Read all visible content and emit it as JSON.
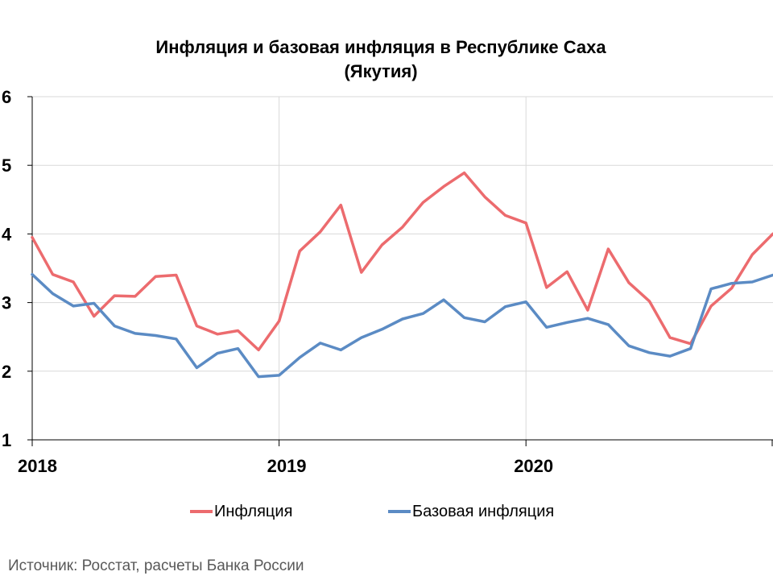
{
  "chart_data": {
    "type": "line",
    "title_line1": "Инфляция и базовая инфляция в Республике Саха",
    "title_line2": "(Якутия)",
    "ylim": [
      1,
      6
    ],
    "yticks": [
      "1",
      "2",
      "3",
      "4",
      "5",
      "6"
    ],
    "xlabels": [
      "2018",
      "2019",
      "2020"
    ],
    "grid": true,
    "legend_position": "bottom",
    "source": "Источник: Росстат, расчеты Банка России",
    "x": [
      "2018-01",
      "2018-02",
      "2018-03",
      "2018-04",
      "2018-05",
      "2018-06",
      "2018-07",
      "2018-08",
      "2018-09",
      "2018-10",
      "2018-11",
      "2018-12",
      "2019-01",
      "2019-02",
      "2019-03",
      "2019-04",
      "2019-05",
      "2019-06",
      "2019-07",
      "2019-08",
      "2019-09",
      "2019-10",
      "2019-11",
      "2019-12",
      "2020-01",
      "2020-02",
      "2020-03",
      "2020-04",
      "2020-05",
      "2020-06",
      "2020-07",
      "2020-08",
      "2020-09",
      "2020-10",
      "2020-11",
      "2020-12",
      "2021-01"
    ],
    "series": [
      {
        "name": "Инфляция",
        "color": "#ec6b6e",
        "values": [
          3.95,
          3.41,
          3.3,
          2.8,
          3.1,
          3.09,
          3.38,
          3.4,
          2.66,
          2.54,
          2.59,
          2.31,
          2.73,
          3.75,
          4.03,
          4.42,
          3.44,
          3.84,
          4.1,
          4.46,
          4.69,
          4.89,
          4.54,
          4.27,
          4.16,
          3.22,
          3.45,
          2.89,
          3.78,
          3.29,
          3.02,
          2.49,
          2.4,
          2.95,
          3.21,
          3.7,
          4.0
        ]
      },
      {
        "name": "Базовая инфляция",
        "color": "#5b8bc4",
        "values": [
          3.41,
          3.13,
          2.95,
          2.99,
          2.66,
          2.55,
          2.52,
          2.47,
          2.05,
          2.26,
          2.33,
          1.92,
          1.94,
          2.2,
          2.41,
          2.31,
          2.49,
          2.61,
          2.76,
          2.84,
          3.04,
          2.78,
          2.72,
          2.94,
          3.01,
          2.64,
          2.71,
          2.77,
          2.68,
          2.37,
          2.27,
          2.22,
          2.33,
          3.2,
          3.28,
          3.3,
          3.4
        ]
      }
    ]
  }
}
